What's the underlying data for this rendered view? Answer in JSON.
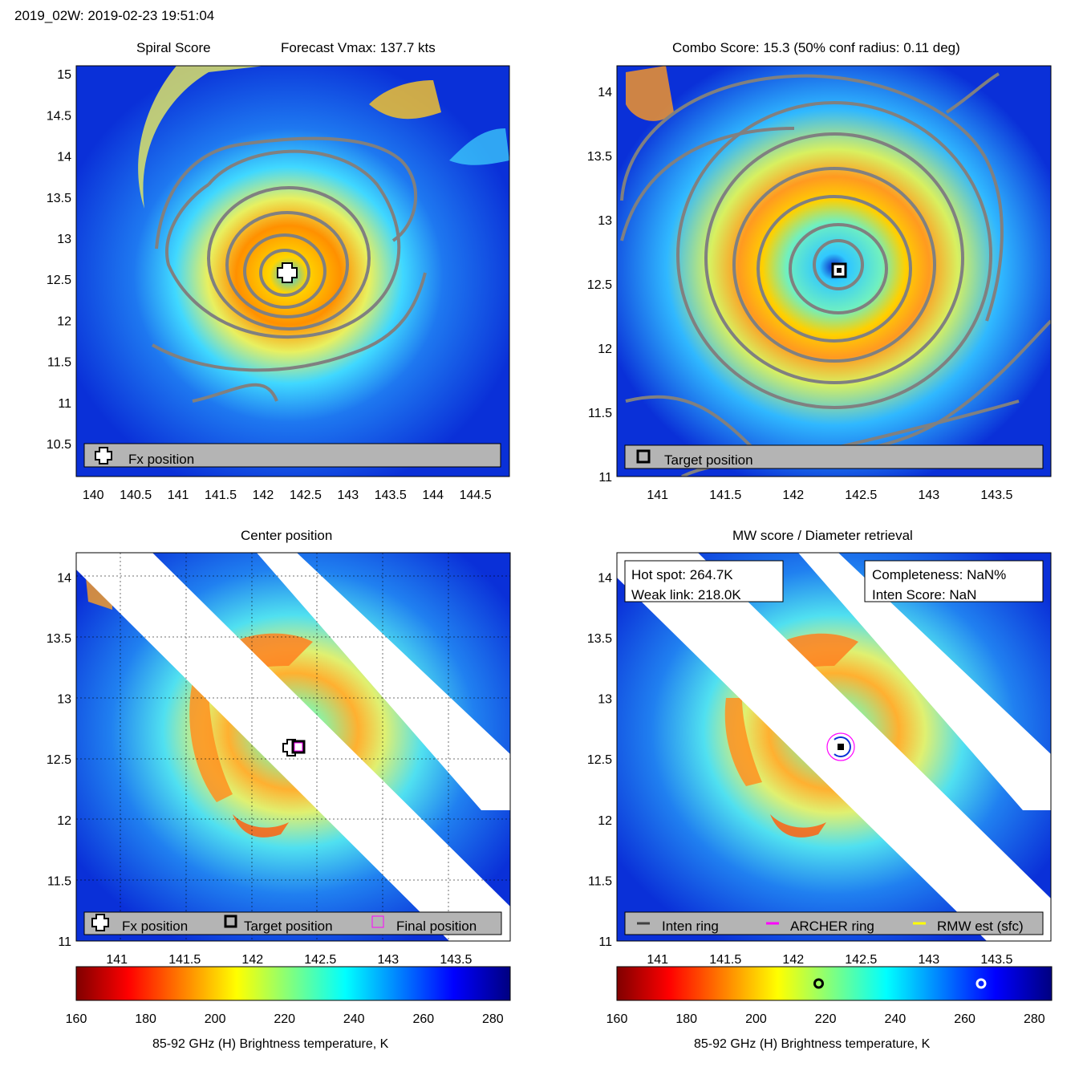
{
  "header": {
    "text": "2019_02W: 2019-02-23 19:51:04"
  },
  "panels": {
    "spiral": {
      "title": "Spiral Score",
      "subtitle": "Forecast Vmax: 137.7 kts",
      "xticks": [
        "140",
        "140.5",
        "141",
        "141.5",
        "142",
        "142.5",
        "143",
        "143.5",
        "144",
        "144.5"
      ],
      "yticks": [
        "15",
        "14.5",
        "14",
        "13.5",
        "13",
        "12.5",
        "12",
        "11.5",
        "11",
        "10.5"
      ],
      "legend": [
        "Fx position"
      ]
    },
    "combo": {
      "title": "Combo Score: 15.3  (50% conf radius: 0.11 deg)",
      "xticks": [
        "141",
        "141.5",
        "142",
        "142.5",
        "143",
        "143.5"
      ],
      "yticks": [
        "14",
        "13.5",
        "13",
        "12.5",
        "12",
        "11.5",
        "11"
      ],
      "legend": [
        "Target position"
      ]
    },
    "center": {
      "title": "Center position",
      "xticks": [
        "141",
        "141.5",
        "142",
        "142.5",
        "143",
        "143.5"
      ],
      "yticks": [
        "14",
        "13.5",
        "13",
        "12.5",
        "12",
        "11.5",
        "11"
      ],
      "legend": [
        "Fx position",
        "Target position",
        "Final position"
      ]
    },
    "mw": {
      "title": "MW score / Diameter retrieval",
      "xticks": [
        "141",
        "141.5",
        "142",
        "142.5",
        "143",
        "143.5"
      ],
      "yticks": [
        "14",
        "13.5",
        "13",
        "12.5",
        "12",
        "11.5",
        "11"
      ],
      "legend": [
        "Inten ring",
        "ARCHER ring",
        "RMW est (sfc)"
      ],
      "info_left": [
        "Hot spot: 264.7K",
        "Weak link: 218.0K"
      ],
      "info_right": [
        "Completeness: NaN%",
        "Inten Score: NaN"
      ]
    }
  },
  "colorbar": {
    "ticks": [
      "160",
      "180",
      "200",
      "220",
      "240",
      "260",
      "280"
    ],
    "label": "85-92 GHz (H) Brightness temperature, K",
    "markers_K": [
      218.0,
      264.7
    ]
  },
  "chart_data": [
    {
      "type": "heatmap",
      "title": "Spiral Score",
      "subtitle": "Forecast Vmax: 137.7 kts",
      "xlim": [
        139.8,
        144.9
      ],
      "ylim": [
        10.1,
        15.1
      ],
      "markers": [
        {
          "name": "Fx position",
          "x": 142.3,
          "y": 12.6
        }
      ]
    },
    {
      "type": "heatmap",
      "title": "Combo Score: 15.3  (50% conf radius: 0.11 deg)",
      "xlim": [
        140.7,
        143.9
      ],
      "ylim": [
        11.0,
        14.2
      ],
      "markers": [
        {
          "name": "Target position",
          "x": 142.36,
          "y": 12.6
        }
      ]
    },
    {
      "type": "heatmap",
      "title": "Center position",
      "xlim": [
        140.7,
        143.9
      ],
      "ylim": [
        11.0,
        14.2
      ],
      "markers": [
        {
          "name": "Fx position",
          "x": 142.3,
          "y": 12.6
        },
        {
          "name": "Target position",
          "x": 142.36,
          "y": 12.6
        },
        {
          "name": "Final position",
          "x": 142.36,
          "y": 12.6
        }
      ]
    },
    {
      "type": "heatmap",
      "title": "MW score / Diameter retrieval",
      "xlim": [
        140.7,
        143.9
      ],
      "ylim": [
        11.0,
        14.2
      ],
      "markers": [
        {
          "name": "ARCHER ring",
          "x": 142.36,
          "y": 12.6
        }
      ]
    }
  ],
  "colors": {
    "legend_bg": "#b4b4b4",
    "contour": "#808080",
    "archer": "#ff00ff"
  }
}
